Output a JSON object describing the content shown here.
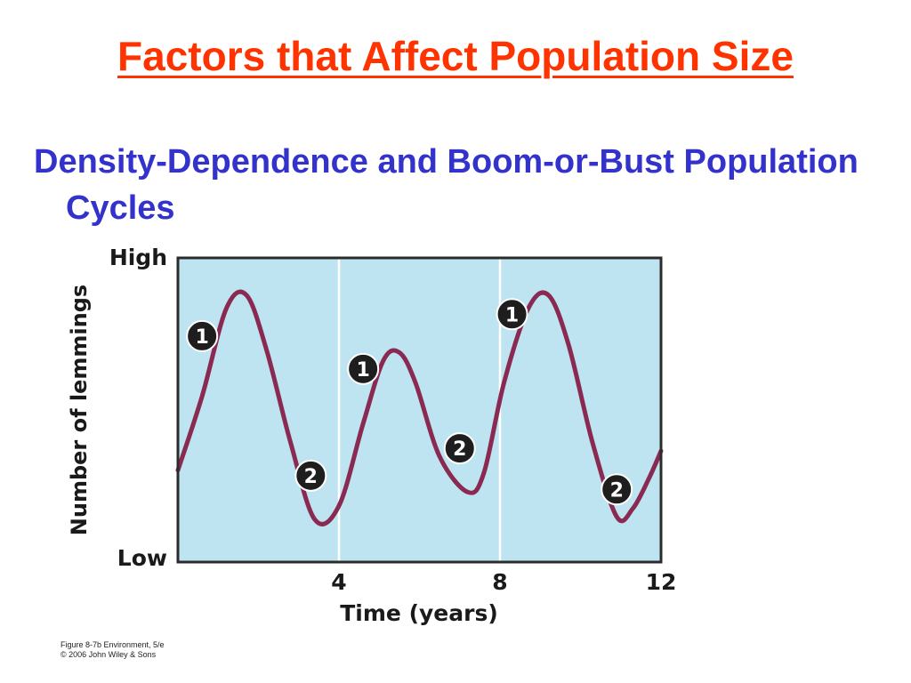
{
  "slide": {
    "title": "Factors that Affect Population Size",
    "subtitle": "Density-Dependence and Boom-or-Bust Population Cycles"
  },
  "chart_data": {
    "type": "line",
    "xlabel": "Time (years)",
    "ylabel": "Number of lemmings",
    "xlim": [
      0,
      12
    ],
    "x_ticks": [
      4,
      8,
      12
    ],
    "ylim": [
      0,
      1
    ],
    "y_tick_labels": [
      "Low",
      "High"
    ],
    "vertical_gridlines": [
      4,
      8
    ],
    "grid": true,
    "series": [
      {
        "x": [
          0,
          0.6,
          1.2,
          1.7,
          2.2,
          2.8,
          3.4,
          4.0,
          4.6,
          5.1,
          5.5,
          5.9,
          6.5,
          7.2,
          7.6,
          8.1,
          8.7,
          9.2,
          9.7,
          10.3,
          10.9,
          11.3,
          11.7,
          12
        ],
        "values": [
          0.28,
          0.55,
          0.87,
          0.92,
          0.72,
          0.38,
          0.1,
          0.15,
          0.45,
          0.68,
          0.71,
          0.6,
          0.33,
          0.2,
          0.27,
          0.6,
          0.87,
          0.92,
          0.74,
          0.38,
          0.11,
          0.14,
          0.25,
          0.35
        ]
      }
    ],
    "markers": [
      {
        "label": "1",
        "x": 0.6,
        "y": 0.77
      },
      {
        "label": "2",
        "x": 3.3,
        "y": 0.26
      },
      {
        "label": "1",
        "x": 4.6,
        "y": 0.65
      },
      {
        "label": "2",
        "x": 7.0,
        "y": 0.36
      },
      {
        "label": "1",
        "x": 8.3,
        "y": 0.85
      },
      {
        "label": "2",
        "x": 10.9,
        "y": 0.21
      }
    ],
    "colors": {
      "background": "#bde4f0",
      "line": "#8a2a52",
      "marker_fill": "#1e1e1e",
      "marker_text": "#ffffff",
      "frame": "#2b2b2b"
    }
  },
  "credit": {
    "line1": "Figure 8-7b  Environment, 5/e",
    "line2": "© 2006 John Wiley & Sons"
  }
}
